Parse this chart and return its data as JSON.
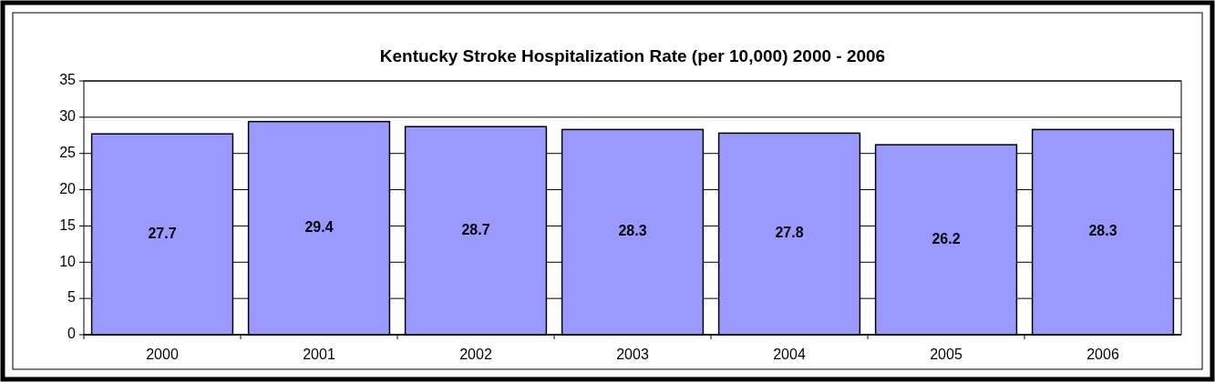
{
  "chart_data": {
    "type": "bar",
    "title": "Kentucky Stroke Hospitalization Rate (per 10,000) 2000 - 2006",
    "categories": [
      "2000",
      "2001",
      "2002",
      "2003",
      "2004",
      "2005",
      "2006"
    ],
    "values": [
      27.7,
      29.4,
      28.7,
      28.3,
      27.8,
      26.2,
      28.3
    ],
    "color": "#9999ff",
    "ylim": [
      0,
      35
    ],
    "yticks": [
      0,
      5,
      10,
      15,
      20,
      25,
      30,
      35
    ],
    "grid": "y",
    "data_labels": true
  }
}
